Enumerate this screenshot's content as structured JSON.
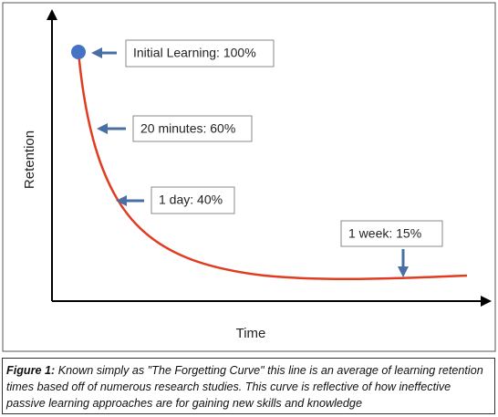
{
  "axes": {
    "y_label": "Retention",
    "x_label": "Time"
  },
  "annotations": [
    {
      "label": "Initial Learning: 100%"
    },
    {
      "label": "20 minutes: 60%"
    },
    {
      "label": "1 day: 40%"
    },
    {
      "label": "1 week: 15%"
    }
  ],
  "caption": {
    "label": "Figure 1:",
    "text": "Known simply as \"The Forgetting Curve\" this line is an average of learning retention times based off of numerous research studies. This curve is reflective of how ineffective passive learning approaches are for gaining new skills and knowledge"
  }
}
